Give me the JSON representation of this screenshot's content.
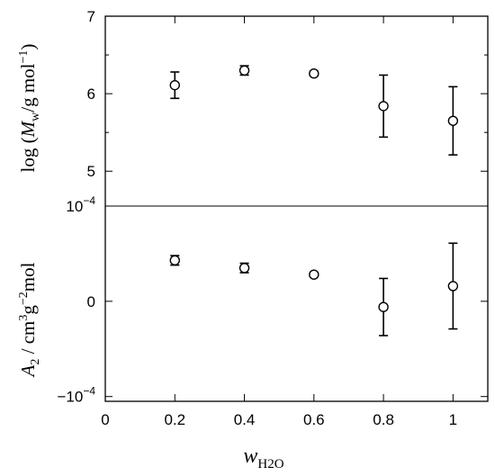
{
  "chart_data": {
    "type": "scatter",
    "xlabel": {
      "main": "w",
      "sub": "H2O"
    },
    "x_ticks": [
      0,
      0.2,
      0.4,
      0.6,
      0.8,
      1
    ],
    "x_tick_labels": [
      "0",
      "0.2",
      "0.4",
      "0.6",
      "0.8",
      "1"
    ],
    "xlim": [
      0,
      1.1
    ],
    "grid": false,
    "panels": [
      {
        "name": "top",
        "ylabel": {
          "prefix": "log (",
          "italic": "M",
          "sub": "w",
          "mid": "/g mol",
          "sup": "−1",
          "suffix": ")"
        },
        "ylim": [
          4.55,
          7
        ],
        "y_ticks": [
          5,
          6,
          7
        ],
        "y_tick_labels": [
          "5",
          "6",
          "7"
        ],
        "points": [
          {
            "x": 0.2,
            "y": 6.11,
            "err": 0.17
          },
          {
            "x": 0.4,
            "y": 6.3,
            "err": 0.06
          },
          {
            "x": 0.6,
            "y": 6.26,
            "err": 0.03
          },
          {
            "x": 0.8,
            "y": 5.84,
            "err": 0.4
          },
          {
            "x": 1.0,
            "y": 5.65,
            "err": 0.44
          }
        ]
      },
      {
        "name": "bottom",
        "ylabel": {
          "italic": "A",
          "sub": "2",
          "mid": " / cm",
          "sup1": "3",
          "mid2": "g",
          "sup2": "−2",
          "suffix": "mol"
        },
        "ylim": [
          -0.000105,
          0.0001
        ],
        "y_ticks": [
          -0.0001,
          0,
          0.0001
        ],
        "y_tick_labels": [
          "−10",
          "0",
          "10"
        ],
        "y_tick_sups": [
          "−4",
          "",
          "−4"
        ],
        "points": [
          {
            "x": 0.2,
            "y": 4.3e-05,
            "err": 5e-06
          },
          {
            "x": 0.4,
            "y": 3.5e-05,
            "err": 5e-06
          },
          {
            "x": 0.6,
            "y": 2.8e-05,
            "err": 2e-06
          },
          {
            "x": 0.8,
            "y": -6e-06,
            "err": 3e-05
          },
          {
            "x": 1.0,
            "y": 1.6e-05,
            "err": 4.5e-05
          }
        ]
      }
    ]
  }
}
